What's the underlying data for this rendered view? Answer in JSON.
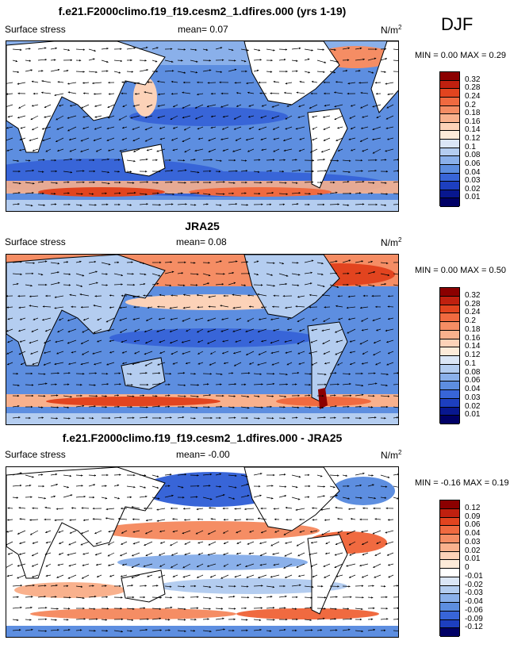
{
  "season": "DJF",
  "panels": [
    {
      "title": "f.e21.F2000climo.f19_f19.cesm2_1.dfires.000 (yrs 1-19)",
      "variable": "Surface stress",
      "mean_label": "mean=  0.07",
      "units": "N/m",
      "units_exp": "2",
      "minmax": "MIN =  0.00 MAX =  0.29",
      "colorbar_ticks": [
        "0.32",
        "0.28",
        "0.24",
        "0.2",
        "0.18",
        "0.16",
        "0.14",
        "0.12",
        "0.1",
        "0.08",
        "0.06",
        "0.04",
        "0.03",
        "0.02",
        "0.01"
      ]
    },
    {
      "title": "JRA25",
      "variable": "Surface stress",
      "mean_label": "mean=  0.08",
      "units": "N/m",
      "units_exp": "2",
      "minmax": "MIN =  0.00 MAX =  0.50",
      "colorbar_ticks": [
        "0.32",
        "0.28",
        "0.24",
        "0.2",
        "0.18",
        "0.16",
        "0.14",
        "0.12",
        "0.1",
        "0.08",
        "0.06",
        "0.04",
        "0.03",
        "0.02",
        "0.01"
      ]
    },
    {
      "title": "f.e21.F2000climo.f19_f19.cesm2_1.dfires.000 - JRA25",
      "variable": "Surface stress",
      "mean_label": "mean=  -0.00",
      "units": "N/m",
      "units_exp": "2",
      "minmax": "MIN = -0.16 MAX =  0.19",
      "colorbar_ticks": [
        "0.12",
        "0.09",
        "0.06",
        "0.04",
        "0.03",
        "0.02",
        "0.01",
        "0",
        "-0.01",
        "-0.02",
        "-0.03",
        "-0.04",
        "-0.06",
        "-0.09",
        "-0.12"
      ]
    }
  ],
  "colors": {
    "abs_scale": [
      "#8b0000",
      "#c0200f",
      "#e2441f",
      "#f06a40",
      "#f58d64",
      "#f9b18d",
      "#fcd2b8",
      "#fdebd9",
      "#dbe6f6",
      "#b4cdf0",
      "#8ab0ea",
      "#5d8ee0",
      "#3865d8",
      "#1d3fbf",
      "#08178f",
      "#000066"
    ],
    "diff_scale": [
      "#8b0000",
      "#c0200f",
      "#e2441f",
      "#f06a40",
      "#f58d64",
      "#f9b18d",
      "#fcd2b8",
      "#fdebd9",
      "#ffffff",
      "#dbe6f6",
      "#b4cdf0",
      "#8ab0ea",
      "#5d8ee0",
      "#3865d8",
      "#1d3fbf",
      "#000066"
    ]
  }
}
